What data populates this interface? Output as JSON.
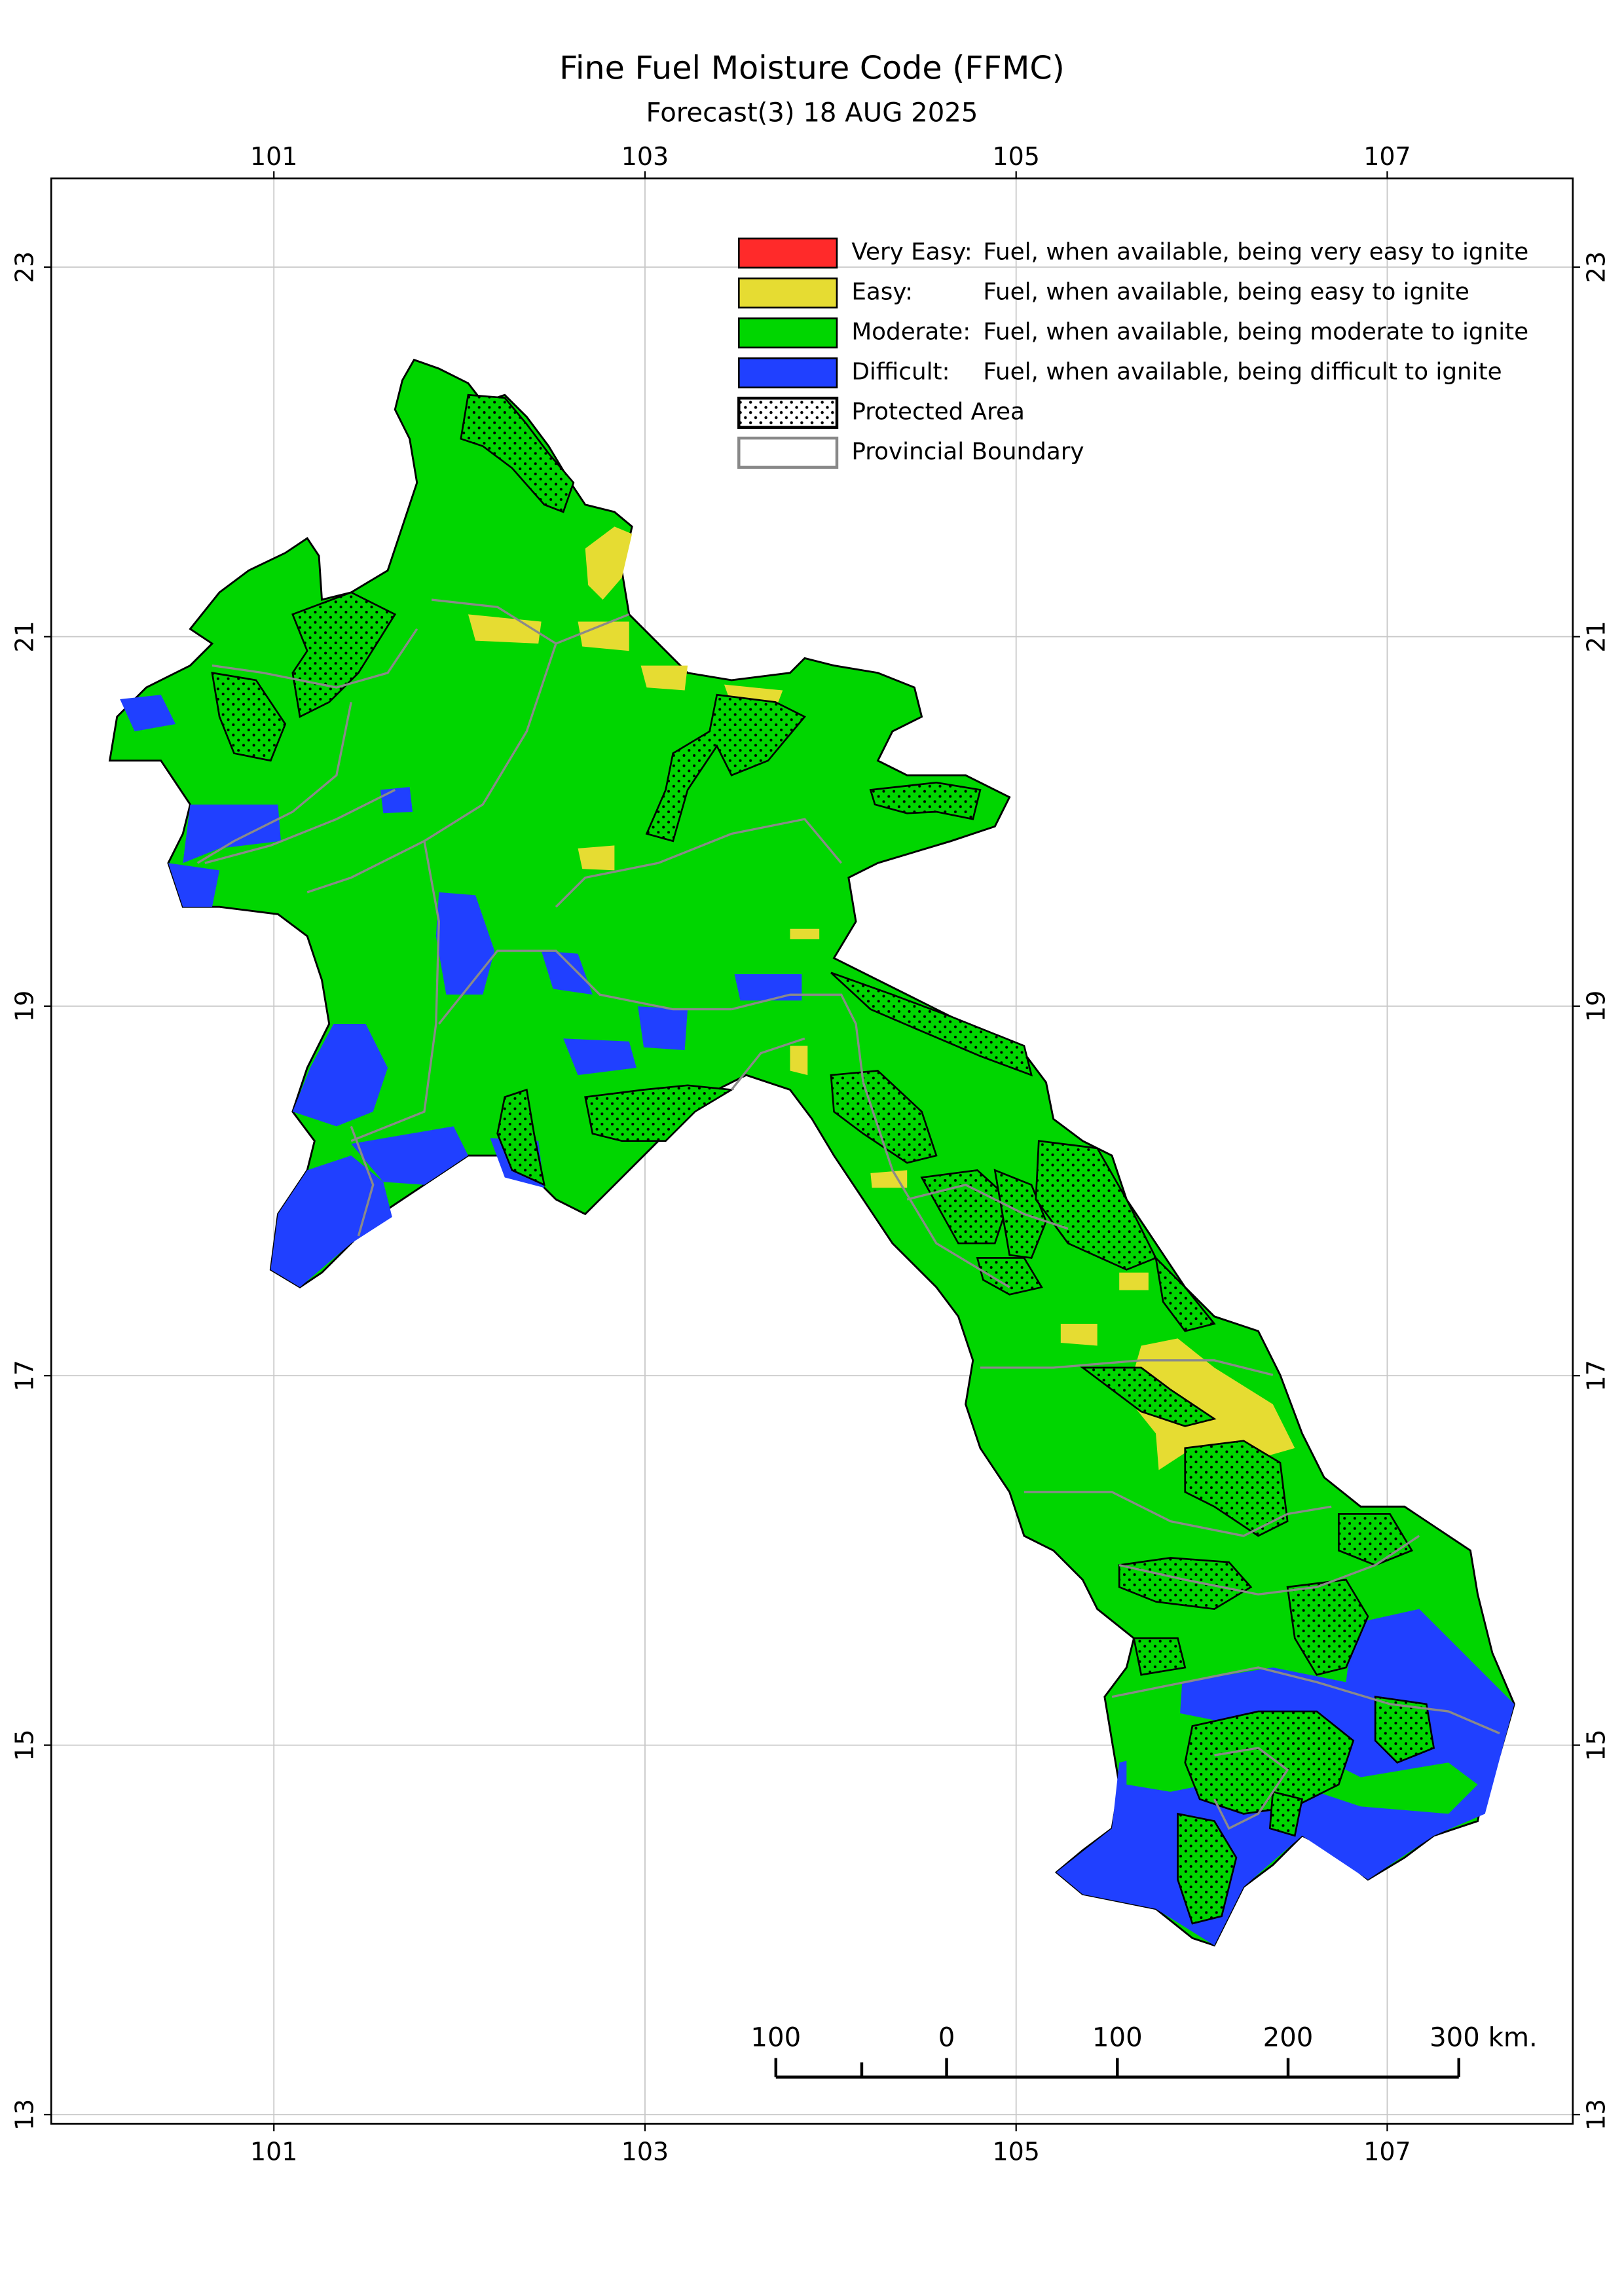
{
  "chart_data": {
    "type": "map",
    "title": "Fine Fuel Moisture Code (FFMC)",
    "subtitle": "Forecast(3) 18 AUG 2025",
    "xlim": [
      99.8,
      108.0
    ],
    "ylim": [
      12.95,
      23.48
    ],
    "xticks": [
      101,
      103,
      105,
      107
    ],
    "yticks": [
      13,
      15,
      17,
      19,
      21,
      23
    ],
    "grid": true,
    "legend": [
      {
        "label": "Very Easy:",
        "description": "Fuel, when available, being very easy to ignite",
        "color": "#ff2a2a"
      },
      {
        "label": "Easy:",
        "description": "Fuel, when available, being easy to ignite",
        "color": "#e6dc32"
      },
      {
        "label": "Moderate:",
        "description": "Fuel, when available, being moderate to ignite",
        "color": "#00d600"
      },
      {
        "label": "Difficult:",
        "description": "Fuel, when available, being difficult to ignite",
        "color": "#2040ff"
      },
      {
        "label": "Protected Area",
        "color": "#000000",
        "fill": "dots"
      },
      {
        "label": "Provincial Boundary",
        "color": "#888888",
        "fill": "none"
      }
    ],
    "scale_bar": [
      {
        "value": -100,
        "label": "100"
      },
      0,
      100,
      200,
      {
        "value": 300,
        "label": "300 km."
      }
    ]
  }
}
